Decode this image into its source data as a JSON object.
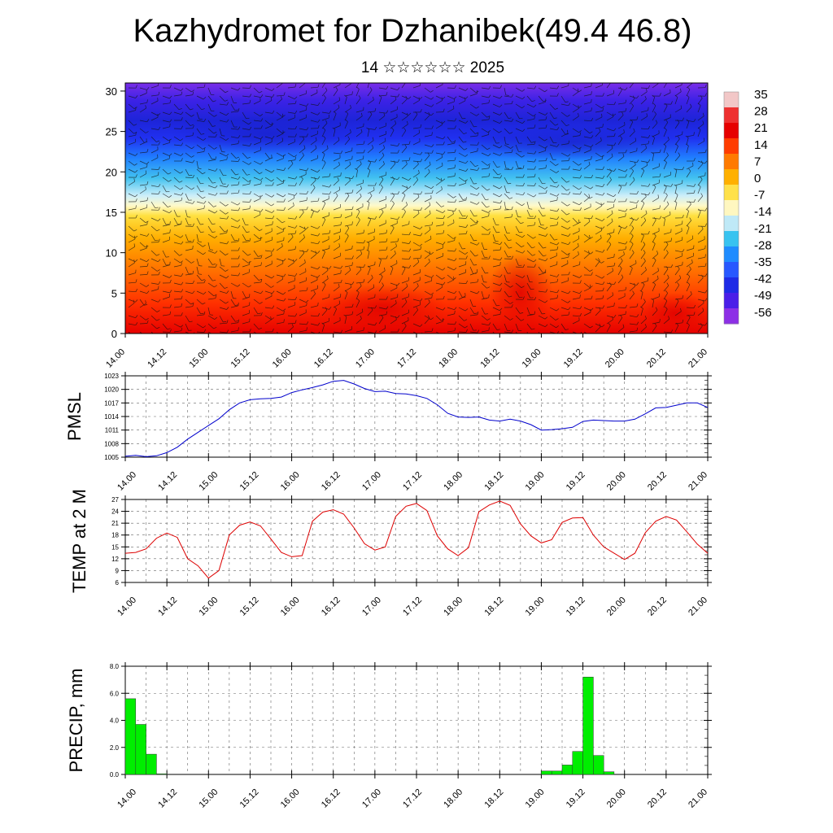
{
  "header": {
    "title": "Kazhydromet for Dzhanibek(49.4 46.8)",
    "subtitle": "14 ☆☆☆☆☆☆ 2025"
  },
  "colors": {
    "pmsl_line": "#0000cc",
    "temp_line": "#dd0000",
    "precip_bar": "#00ee00",
    "frame": "#000000"
  },
  "chart_data": [
    {
      "type": "heatmap",
      "description_field": "temperature cross-section with wind barbs",
      "title": "",
      "ylim": [
        0,
        31
      ],
      "y_ticks": [
        0,
        5,
        10,
        15,
        20,
        25,
        30
      ],
      "x_ticks": [
        "14.00",
        "14.12",
        "15.00",
        "15.12",
        "16.00",
        "16.12",
        "17.00",
        "17.12",
        "18.00",
        "18.12",
        "19.00",
        "19.12",
        "20.00",
        "20.12",
        "21.00"
      ],
      "colorbar_labels": [
        "35",
        "28",
        "21",
        "14",
        "7",
        "0",
        "-7",
        "-14",
        "-21",
        "-28",
        "-35",
        "-42",
        "-49",
        "-56"
      ],
      "colorbar_colors": [
        "#f2c7c7",
        "#ee3030",
        "#e60000",
        "#ff3c00",
        "#ff7a00",
        "#ffb000",
        "#ffe14a",
        "#fff7c0",
        "#bfe9f7",
        "#38c3f0",
        "#1f8cff",
        "#2858ff",
        "#1e2be6",
        "#4a1ee8",
        "#8d2fe6"
      ]
    },
    {
      "type": "line",
      "ylabel": "PMSL",
      "ylim": [
        1005,
        1023
      ],
      "y_ticks": [
        "1005",
        "1008",
        "1011",
        "1014",
        "1017",
        "1020",
        "1023"
      ],
      "x_ticks": [
        "14.00",
        "14.12",
        "15.00",
        "15.12",
        "16.00",
        "16.12",
        "17.00",
        "17.12",
        "18.00",
        "18.12",
        "19.00",
        "19.12",
        "20.00",
        "20.12",
        "21.00"
      ],
      "x": [
        0,
        3,
        6,
        9,
        12,
        15,
        18,
        21,
        24,
        27,
        30,
        33,
        36,
        39,
        42,
        45,
        48,
        51,
        54,
        57,
        60,
        63,
        66,
        69,
        72,
        75,
        78,
        81,
        84,
        87,
        90,
        93,
        96,
        99,
        102,
        105,
        108,
        111,
        114,
        117,
        120,
        123,
        126,
        129,
        132,
        135,
        138,
        141,
        144,
        147,
        150,
        153,
        156,
        159,
        162,
        165,
        168
      ],
      "values": [
        1005.2,
        1005.4,
        1005.1,
        1005.3,
        1006.0,
        1007.2,
        1009.0,
        1010.5,
        1012.0,
        1013.5,
        1015.5,
        1017.0,
        1017.7,
        1017.9,
        1018.0,
        1018.3,
        1019.3,
        1019.9,
        1020.4,
        1021.0,
        1021.8,
        1022.0,
        1021.2,
        1020.2,
        1019.5,
        1019.6,
        1019.1,
        1019.0,
        1018.6,
        1018.0,
        1016.6,
        1014.7,
        1013.9,
        1013.8,
        1013.9,
        1013.2,
        1013.0,
        1013.4,
        1013.0,
        1012.2,
        1011.0,
        1011.1,
        1011.3,
        1011.6,
        1012.9,
        1013.2,
        1013.1,
        1013.0,
        1013.0,
        1013.4,
        1014.6,
        1015.9,
        1016.0,
        1016.5,
        1017.0,
        1017.0,
        1016.0
      ]
    },
    {
      "type": "line",
      "ylabel": "TEMP at 2 M",
      "ylim": [
        6,
        27
      ],
      "y_ticks": [
        "6",
        "9",
        "12",
        "15",
        "18",
        "21",
        "24",
        "27"
      ],
      "x_ticks": [
        "14.00",
        "14.12",
        "15.00",
        "15.12",
        "16.00",
        "16.12",
        "17.00",
        "17.12",
        "18.00",
        "18.12",
        "19.00",
        "19.12",
        "20.00",
        "20.12",
        "21.00"
      ],
      "x": [
        0,
        3,
        6,
        9,
        12,
        15,
        18,
        21,
        24,
        27,
        30,
        33,
        36,
        39,
        42,
        45,
        48,
        51,
        54,
        57,
        60,
        63,
        66,
        69,
        72,
        75,
        78,
        81,
        84,
        87,
        90,
        93,
        96,
        99,
        102,
        105,
        108,
        111,
        114,
        117,
        120,
        123,
        126,
        129,
        132,
        135,
        138,
        141,
        144,
        147,
        150,
        153,
        156,
        159,
        162,
        165,
        168
      ],
      "values": [
        13.4,
        13.6,
        14.5,
        17.2,
        18.5,
        17.4,
        12.0,
        10.2,
        7.1,
        9.0,
        18.0,
        20.5,
        21.3,
        20.3,
        17.0,
        13.6,
        12.5,
        12.8,
        21.5,
        23.8,
        24.4,
        23.3,
        19.8,
        15.8,
        14.2,
        15.0,
        22.7,
        25.3,
        26.0,
        24.2,
        17.8,
        14.5,
        12.8,
        14.8,
        23.9,
        25.6,
        26.6,
        25.5,
        20.8,
        17.8,
        16.0,
        16.8,
        21.2,
        22.3,
        22.4,
        18.0,
        15.0,
        13.4,
        11.8,
        13.4,
        18.6,
        21.5,
        22.7,
        21.8,
        18.8,
        15.7,
        13.4
      ]
    },
    {
      "type": "bar",
      "ylabel": "PRECIP, mm",
      "ylim": [
        0,
        8
      ],
      "y_ticks": [
        "0.0",
        "2.0",
        "4.0",
        "6.0",
        "8.0"
      ],
      "x_ticks": [
        "14.00",
        "14.12",
        "15.00",
        "15.12",
        "16.00",
        "16.12",
        "17.00",
        "17.12",
        "18.00",
        "18.12",
        "19.00",
        "19.12",
        "20.00",
        "20.12",
        "21.00"
      ],
      "x": [
        0,
        3,
        6,
        9,
        120,
        123,
        126,
        129,
        132,
        135,
        138
      ],
      "values": [
        5.6,
        3.7,
        1.5,
        0.05,
        0.25,
        0.25,
        0.7,
        1.7,
        7.2,
        1.4,
        0.2
      ]
    }
  ]
}
